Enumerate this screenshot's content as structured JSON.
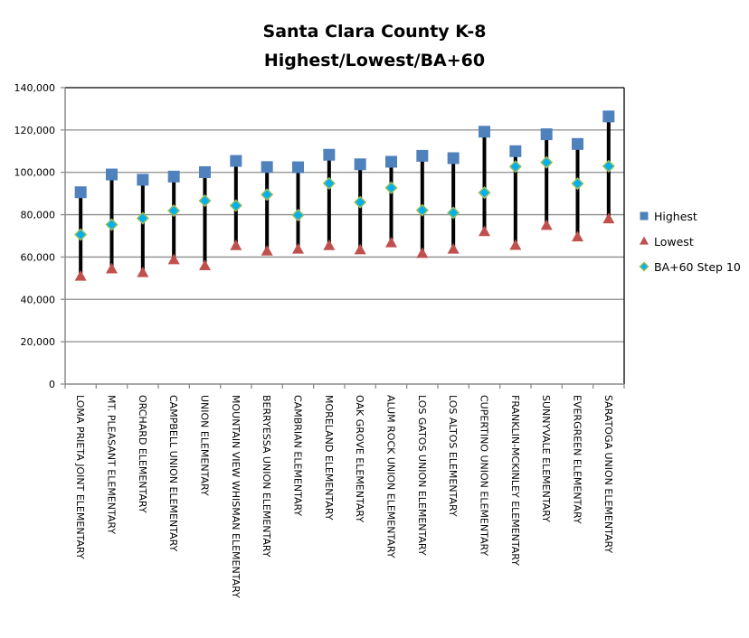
{
  "chart_data": {
    "type": "scatter",
    "subtype": "high-low-markers",
    "title": [
      "Santa Clara County K-8",
      "Highest/Lowest/BA+60"
    ],
    "xlabel": "",
    "ylabel": "",
    "ylim": [
      0,
      140000
    ],
    "yticks": [
      0,
      20000,
      40000,
      60000,
      80000,
      100000,
      120000,
      140000
    ],
    "ytick_labels": [
      "0",
      "20,000",
      "40,000",
      "60,000",
      "80,000",
      "100,000",
      "120,000",
      "140,000"
    ],
    "grid": true,
    "legend_position": "right",
    "categories": [
      "LOMA PRIETA JOINT ELEMENTARY",
      "MT. PLEASANT ELEMENTARY",
      "ORCHARD ELEMENTARY",
      "CAMPBELL UNION ELEMENTARY",
      "UNION ELEMENTARY",
      "MOUNTAIN VIEW WHISMAN ELEMENTARY",
      "BERRYESSA UNION ELEMENTARY",
      "CAMBRIAN ELEMENTARY",
      "MORELAND ELEMENTARY",
      "OAK GROVE ELEMENTARY",
      "ALUM ROCK UNION ELEMENTARY",
      "LOS GATOS UNION ELEMENTARY",
      "LOS ALTOS ELEMENTARY",
      "CUPERTINO UNION ELEMENTARY",
      "FRANKLIN-MCKINLEY ELEMENTARY",
      "SUNNYVALE ELEMENTARY",
      "EVERGREEN ELEMENTARY",
      "SARATOGA UNION ELEMENTARY"
    ],
    "series": [
      {
        "name": "Highest",
        "marker": "square",
        "color": "#4F81BD",
        "values": [
          90600,
          99000,
          96500,
          98000,
          100100,
          105400,
          102500,
          102400,
          108300,
          103800,
          105000,
          107800,
          106700,
          119200,
          110000,
          118000,
          113400,
          126400
        ]
      },
      {
        "name": "Lowest",
        "marker": "triangle",
        "color": "#C0504D",
        "values": [
          50800,
          54300,
          52500,
          58600,
          55800,
          65300,
          62700,
          63600,
          65300,
          63300,
          66600,
          61600,
          63600,
          71900,
          65400,
          74800,
          69400,
          77900
        ]
      },
      {
        "name": "BA+60 Step 10",
        "marker": "diamond",
        "color": "#00B0F0",
        "edge_color": "#9BBB59",
        "values": [
          70600,
          75300,
          78300,
          81900,
          86600,
          84300,
          89500,
          79800,
          94800,
          85900,
          92700,
          82100,
          80900,
          90400,
          102700,
          104700,
          94700,
          102900
        ]
      }
    ],
    "high_low_line_color": "#000000"
  }
}
